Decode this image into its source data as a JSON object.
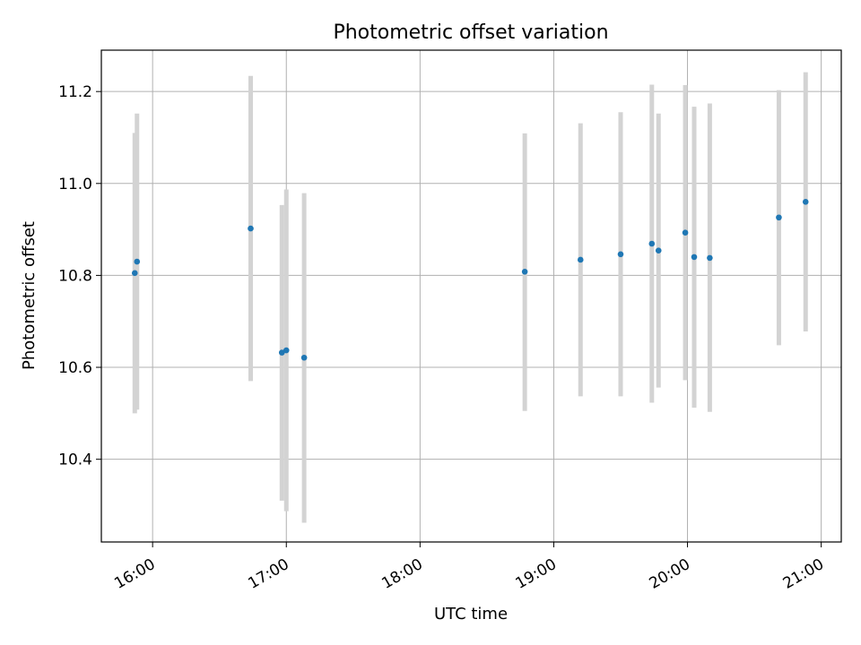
{
  "chart_data": {
    "type": "scatter",
    "title": "Photometric offset variation",
    "xlabel": "UTC time",
    "ylabel": "Photometric offset",
    "x_ticks": [
      "16:00",
      "17:00",
      "18:00",
      "19:00",
      "20:00",
      "21:00"
    ],
    "y_ticks": [
      "10.4",
      "10.6",
      "10.8",
      "11.0",
      "11.2"
    ],
    "x_range": [
      "15:37",
      "21:09"
    ],
    "ylim": [
      10.22,
      11.29
    ],
    "grid": true,
    "marker_color": "#1f77b4",
    "errorbar_color": "#d3d3d3",
    "points": [
      {
        "t": "15:52",
        "y": 10.805,
        "low": 10.5,
        "high": 11.11
      },
      {
        "t": "15:53",
        "y": 10.83,
        "low": 10.508,
        "high": 11.152
      },
      {
        "t": "16:44",
        "y": 10.902,
        "low": 10.57,
        "high": 11.234
      },
      {
        "t": "16:58",
        "y": 10.632,
        "low": 10.31,
        "high": 10.953
      },
      {
        "t": "17:00",
        "y": 10.637,
        "low": 10.287,
        "high": 10.987
      },
      {
        "t": "17:08",
        "y": 10.621,
        "low": 10.262,
        "high": 10.979
      },
      {
        "t": "18:47",
        "y": 10.808,
        "low": 10.505,
        "high": 11.109
      },
      {
        "t": "19:12",
        "y": 10.834,
        "low": 10.537,
        "high": 11.131
      },
      {
        "t": "19:30",
        "y": 10.846,
        "low": 10.537,
        "high": 11.155
      },
      {
        "t": "19:44",
        "y": 10.869,
        "low": 10.523,
        "high": 11.215
      },
      {
        "t": "19:47",
        "y": 10.854,
        "low": 10.556,
        "high": 11.152
      },
      {
        "t": "19:59",
        "y": 10.893,
        "low": 10.572,
        "high": 11.214
      },
      {
        "t": "20:03",
        "y": 10.84,
        "low": 10.512,
        "high": 11.167
      },
      {
        "t": "20:10",
        "y": 10.838,
        "low": 10.503,
        "high": 11.174
      },
      {
        "t": "20:41",
        "y": 10.926,
        "low": 10.648,
        "high": 11.203
      },
      {
        "t": "20:53",
        "y": 10.96,
        "low": 10.678,
        "high": 11.242
      }
    ]
  }
}
